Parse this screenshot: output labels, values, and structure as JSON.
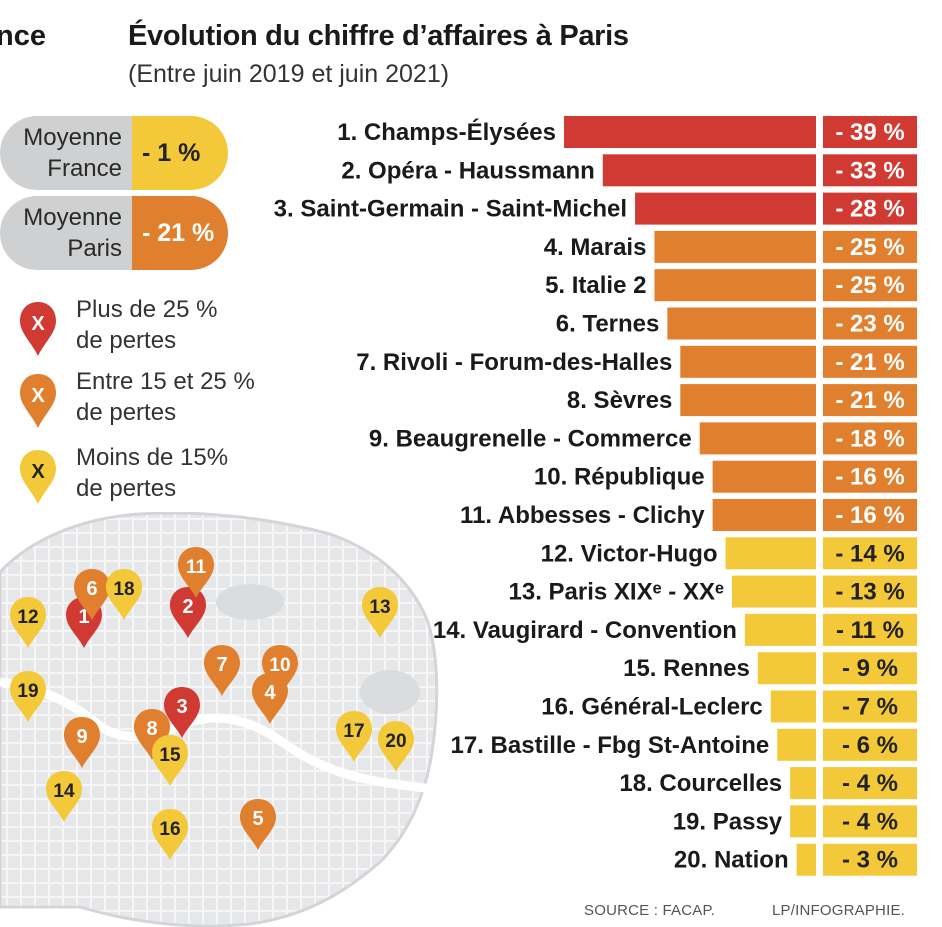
{
  "header": {
    "edge_title": "nce",
    "title": "Évolution du chiffre d’affaires à Paris",
    "subtitle": "(Entre juin 2019 et juin 2021)"
  },
  "averages": [
    {
      "label_line1": "Moyenne",
      "label_line2": "France",
      "value": "- 1 %"
    },
    {
      "label_line1": "Moyenne",
      "label_line2": "Paris",
      "value": "- 21 %"
    }
  ],
  "legend": [
    {
      "marker": "X",
      "line1": "Plus de 25 %",
      "line2": "de pertes",
      "color": "#d13a32"
    },
    {
      "marker": "X",
      "line1": "Entre 15 et 25 %",
      "line2": "de pertes",
      "color": "#e0802f"
    },
    {
      "marker": "X",
      "line1": "Moins de 15%",
      "line2": "de pertes",
      "color": "#f3c93a"
    }
  ],
  "colors": {
    "red": "#d13a32",
    "orange": "#e0802f",
    "yellow": "#f3c93a"
  },
  "map_markers": [
    "1",
    "2",
    "3",
    "4",
    "5",
    "6",
    "7",
    "8",
    "9",
    "10",
    "11",
    "12",
    "13",
    "14",
    "15",
    "16",
    "17",
    "18",
    "19",
    "20"
  ],
  "chart_data": {
    "type": "bar",
    "orientation": "horizontal",
    "categories": [
      "1. Champs-Élysées",
      "2. Opéra - Haussmann",
      "3. Saint-Germain - Saint-Michel",
      "4. Marais",
      "5. Italie 2",
      "6. Ternes",
      "7. Rivoli - Forum-des-Halles",
      "8. Sèvres",
      "9. Beaugrenelle - Commerce",
      "10. République",
      "11. Abbesses - Clichy",
      "12. Victor-Hugo",
      "13. Paris XIXᵉ - XXᵉ",
      "14. Vaugirard - Convention",
      "15. Rennes",
      "16. Général-Leclerc",
      "17. Bastille - Fbg St-Antoine",
      "18. Courcelles",
      "19. Passy",
      "20. Nation"
    ],
    "values": [
      -39,
      -33,
      -28,
      -25,
      -25,
      -23,
      -21,
      -21,
      -18,
      -16,
      -16,
      -14,
      -13,
      -11,
      -9,
      -7,
      -6,
      -4,
      -4,
      -3
    ],
    "value_labels": [
      "- 39 %",
      "- 33 %",
      "- 28 %",
      "- 25 %",
      "- 25 %",
      "- 23 %",
      "- 21 %",
      "- 21 %",
      "- 18 %",
      "- 16 %",
      "- 16 %",
      "- 14 %",
      "- 13 %",
      "- 11 %",
      "- 9 %",
      "- 7 %",
      "- 6 %",
      "- 4 %",
      "- 4 %",
      "- 3 %"
    ],
    "title": "Évolution du chiffre d’affaires à Paris",
    "subtitle": "(Entre juin 2019 et juin 2021)",
    "unit": "%"
  },
  "footer": {
    "source": "SOURCE : FACAP.",
    "credit": "LP/INFOGRAPHIE."
  }
}
